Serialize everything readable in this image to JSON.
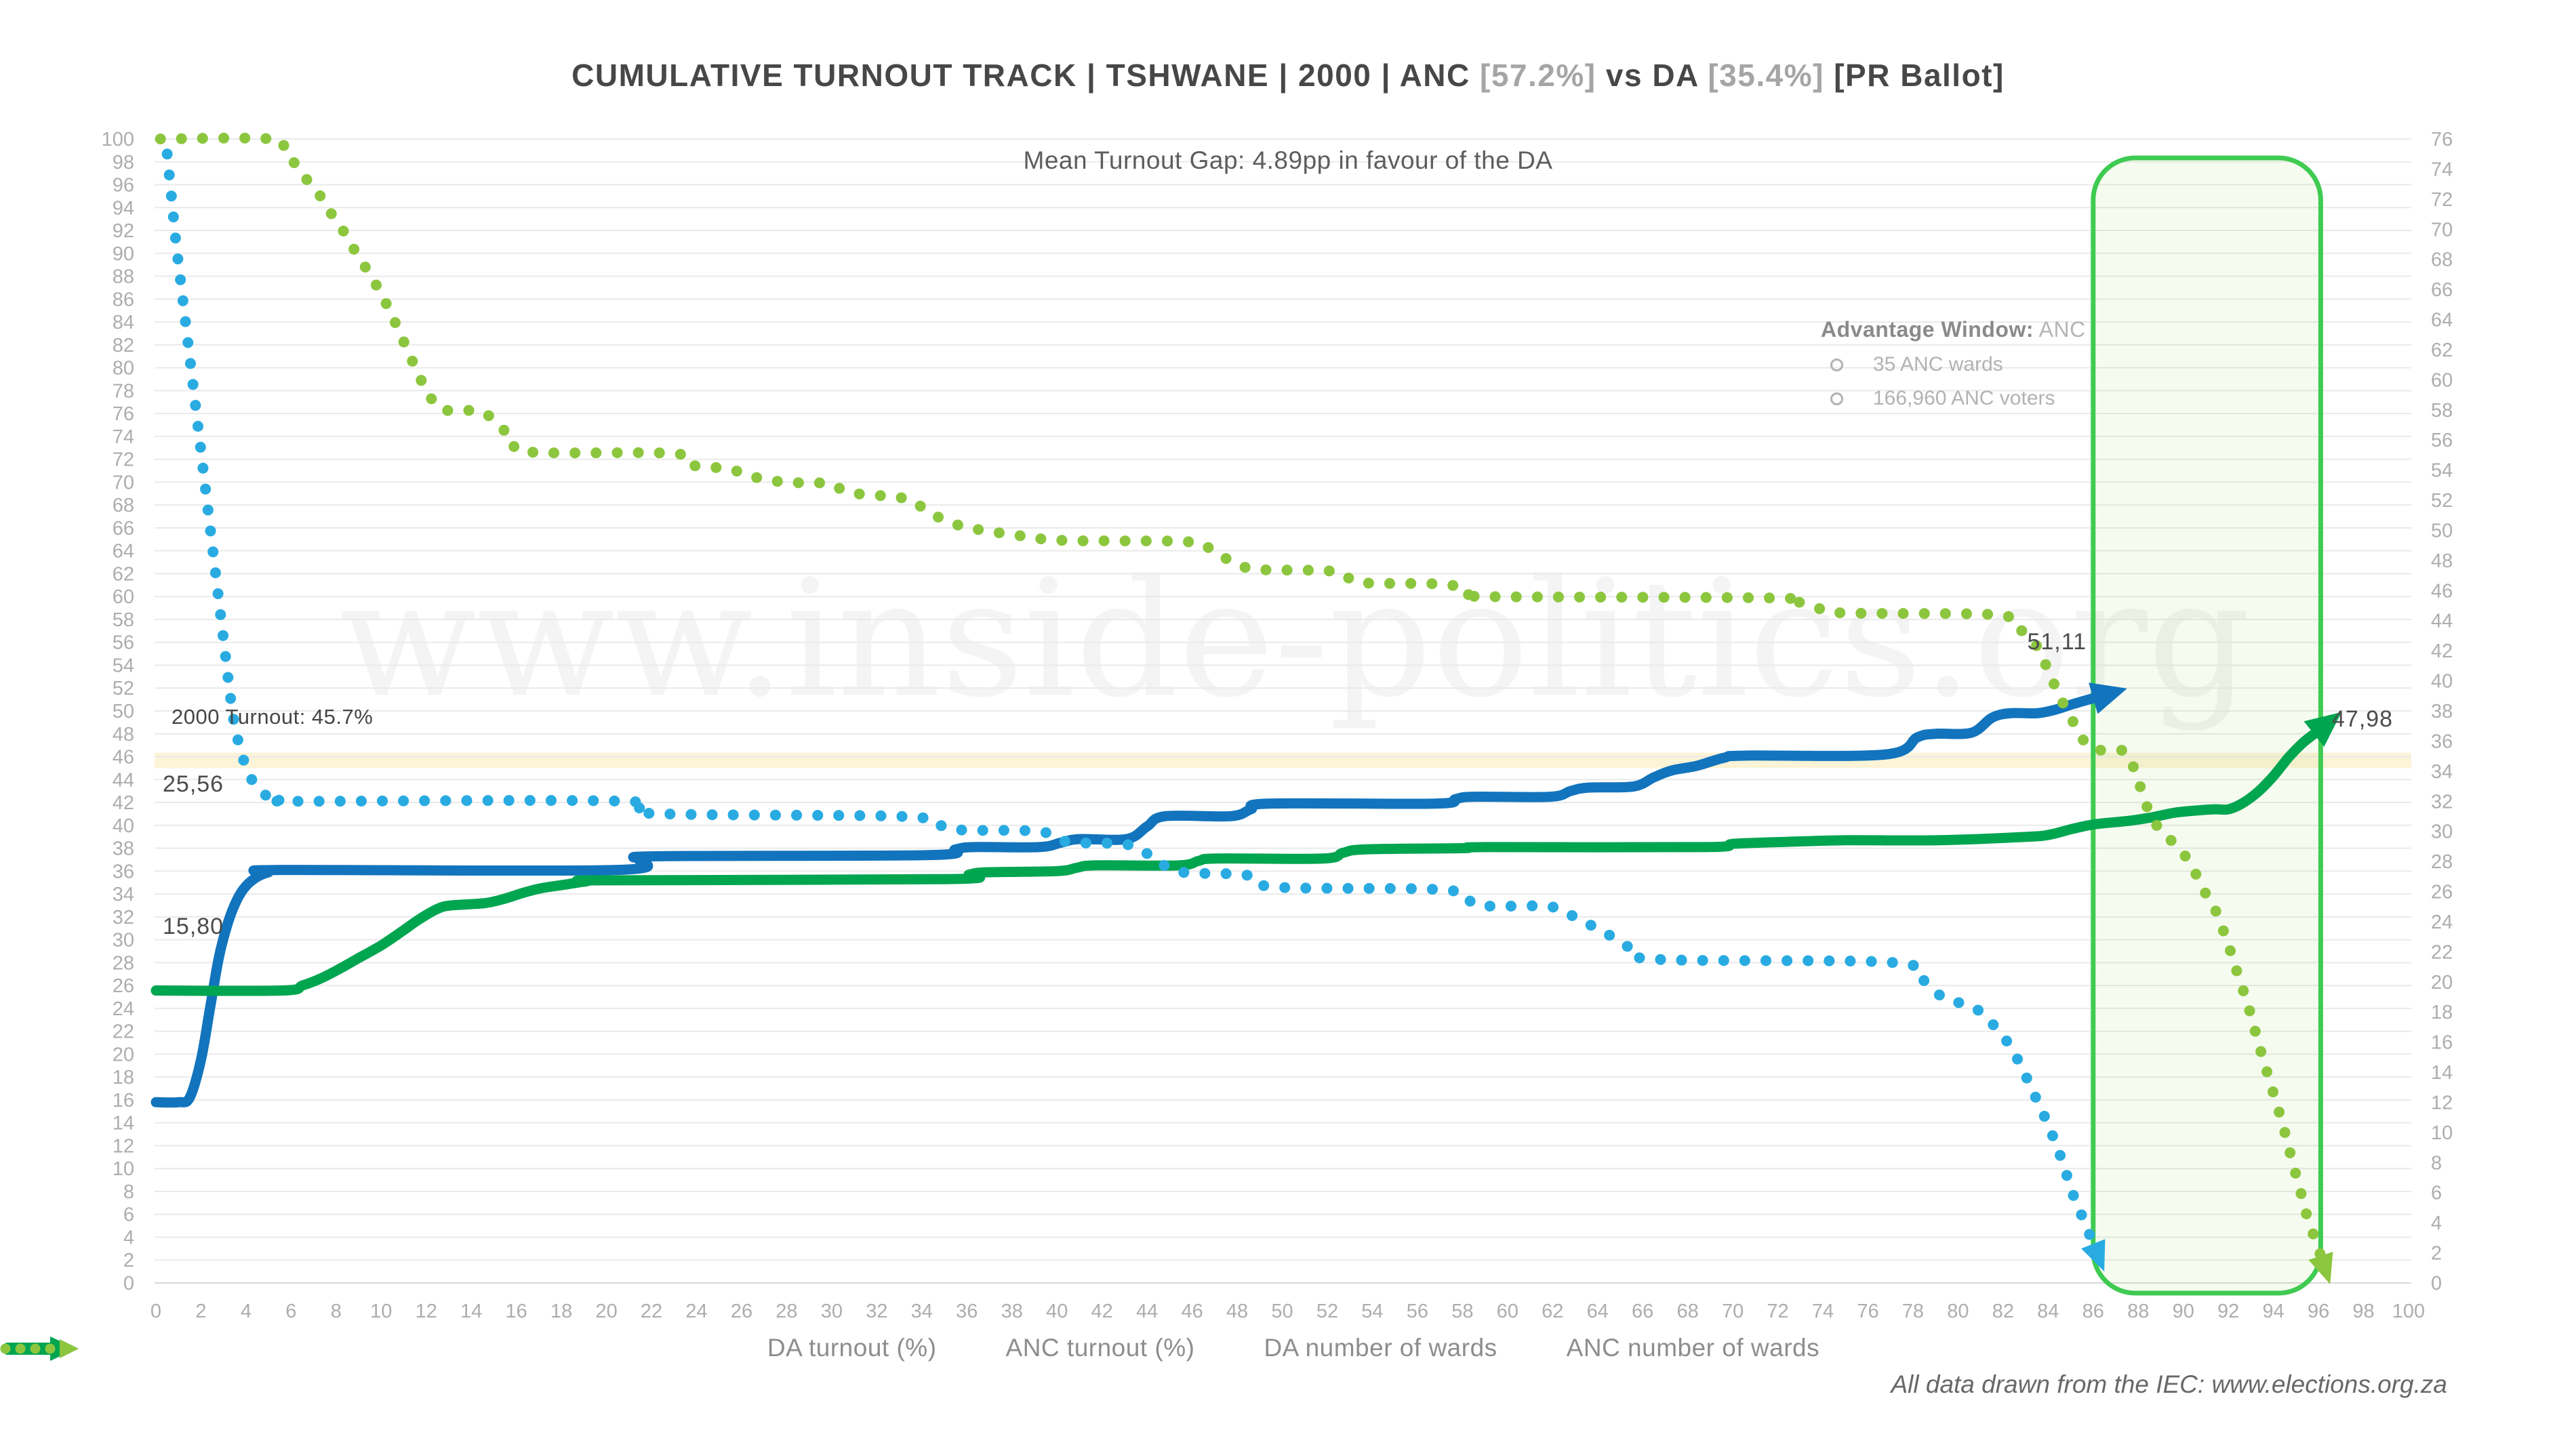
{
  "title": {
    "seg1": "CUMULATIVE TURNOUT TRACK | TSHWANE | 2000 | ANC ",
    "seg2": "[57.2%]",
    "seg3": " vs DA ",
    "seg4": "[35.4%]",
    "seg5": " [PR Ballot]"
  },
  "subtitle": "Mean Turnout Gap: 4.89pp in favour of the DA",
  "watermark": "www.inside-politics.org",
  "footer": "All data drawn from the IEC: www.elections.org.za",
  "annotations": {
    "turnout_band": {
      "label": "2000 Turnout: 45.7%",
      "value": 45.7,
      "band_from": 45.0,
      "band_to": 46.35,
      "color": "#fdf4d7"
    },
    "advantage": {
      "title_label": "Advantage Window:",
      "title_value": " ANC",
      "bullets": [
        "35 ANC wards",
        "166,960 ANC voters"
      ],
      "x_start": 86,
      "x_end": 96.1,
      "stroke": "#3fcb52",
      "fill": "rgba(141,198,63,0.08)"
    },
    "labels": {
      "da_start": "15,80",
      "anc_start": "25,56",
      "da_end": "51,11",
      "anc_end": "47,98"
    }
  },
  "legend": [
    {
      "label": "DA turnout (%)",
      "color": "#1274bd",
      "style": "solid"
    },
    {
      "label": "ANC turnout (%)",
      "color": "#00a550",
      "style": "solid"
    },
    {
      "label": "DA number of wards",
      "color": "#29abe2",
      "style": "dotted"
    },
    {
      "label": "ANC number of wards",
      "color": "#8cc63e",
      "style": "dotted"
    }
  ],
  "colors": {
    "grid": "#eaeaea",
    "grid_zero": "#d8d8d8",
    "tick": "#adadad",
    "da_solid": "#1274bd",
    "anc_solid": "#00a550",
    "da_dotted": "#29abe2",
    "anc_dotted": "#8cc63e",
    "watermark": "rgba(0,0,0,0.045)"
  },
  "chart_data": {
    "type": "line",
    "title": "CUMULATIVE TURNOUT TRACK | TSHWANE | 2000 | ANC [57.2%] vs DA [35.4%] [PR Ballot]",
    "subtitle": "Mean Turnout Gap: 4.89pp in favour of the DA",
    "grid": "horizontal-only",
    "legend_position": "bottom-center",
    "x_axis": {
      "min": 0,
      "max": 100,
      "tick_step": 2
    },
    "y_axis_left": {
      "min": 0,
      "max": 100,
      "tick_step": 2,
      "unit": "turnout %"
    },
    "y_axis_right": {
      "min": 0,
      "max": 76,
      "tick_step": 2,
      "unit": "number of wards"
    },
    "series": [
      {
        "name": "DA turnout (%)",
        "axis": "left",
        "style": "solid",
        "color": "#1274bd",
        "start_label": "15,80",
        "end_label": "51,11",
        "points": [
          [
            0,
            15.8
          ],
          [
            1,
            15.8
          ],
          [
            1.5,
            16.2
          ],
          [
            2,
            19.5
          ],
          [
            2.4,
            24
          ],
          [
            2.8,
            28.5
          ],
          [
            3.2,
            31.5
          ],
          [
            3.6,
            33.5
          ],
          [
            4,
            34.7
          ],
          [
            4.5,
            35.5
          ],
          [
            5,
            35.9
          ],
          [
            5.6,
            36.1
          ],
          [
            20.4,
            36.1
          ],
          [
            21.5,
            37
          ],
          [
            22.3,
            37.3
          ],
          [
            34.3,
            37.4
          ],
          [
            35.5,
            37.9
          ],
          [
            36.3,
            38.1
          ],
          [
            39.2,
            38.1
          ],
          [
            40.2,
            38.5
          ],
          [
            41,
            38.8
          ],
          [
            43.1,
            38.8
          ],
          [
            44,
            39.9
          ],
          [
            44.8,
            40.8
          ],
          [
            47.7,
            40.8
          ],
          [
            48.6,
            41.4
          ],
          [
            49.4,
            41.9
          ],
          [
            56.8,
            41.9
          ],
          [
            57.7,
            42.3
          ],
          [
            58.5,
            42.5
          ],
          [
            61.9,
            42.5
          ],
          [
            62.8,
            43
          ],
          [
            63.6,
            43.3
          ],
          [
            65.6,
            43.4
          ],
          [
            66.5,
            44.2
          ],
          [
            67.3,
            44.8
          ],
          [
            68.4,
            45.2
          ],
          [
            69.6,
            45.9
          ],
          [
            70.6,
            46.1
          ],
          [
            76.8,
            46.2
          ],
          [
            78.2,
            47.7
          ],
          [
            79,
            48
          ],
          [
            80.6,
            48.1
          ],
          [
            81.5,
            49.4
          ],
          [
            82.3,
            49.8
          ],
          [
            83.5,
            49.8
          ],
          [
            84.3,
            50.1
          ],
          [
            85.1,
            50.6
          ],
          [
            86,
            51.11
          ]
        ]
      },
      {
        "name": "ANC turnout (%)",
        "axis": "left",
        "style": "solid",
        "color": "#00a550",
        "start_label": "25,56",
        "end_label": "47,98",
        "points": [
          [
            0,
            25.56
          ],
          [
            5.6,
            25.56
          ],
          [
            6.5,
            26
          ],
          [
            7.3,
            26.6
          ],
          [
            8.1,
            27.4
          ],
          [
            9,
            28.4
          ],
          [
            10,
            29.5
          ],
          [
            10.9,
            30.7
          ],
          [
            11.7,
            31.8
          ],
          [
            12.5,
            32.7
          ],
          [
            13.1,
            33
          ],
          [
            14.6,
            33.2
          ],
          [
            15.5,
            33.6
          ],
          [
            16.3,
            34.1
          ],
          [
            17.1,
            34.5
          ],
          [
            18.1,
            34.8
          ],
          [
            19.1,
            35.1
          ],
          [
            20.1,
            35.2
          ],
          [
            35.2,
            35.3
          ],
          [
            36.1,
            35.7
          ],
          [
            36.9,
            35.9
          ],
          [
            40,
            36
          ],
          [
            40.9,
            36.3
          ],
          [
            41.7,
            36.5
          ],
          [
            45.4,
            36.5
          ],
          [
            46.3,
            36.9
          ],
          [
            47.1,
            37.1
          ],
          [
            51.8,
            37.1
          ],
          [
            52.7,
            37.6
          ],
          [
            53.7,
            37.9
          ],
          [
            58,
            38
          ],
          [
            59.1,
            38.1
          ],
          [
            68.8,
            38.1
          ],
          [
            70.1,
            38.4
          ],
          [
            73.1,
            38.6
          ],
          [
            75.1,
            38.7
          ],
          [
            79.1,
            38.7
          ],
          [
            83.1,
            39
          ],
          [
            84.1,
            39.2
          ],
          [
            85.1,
            39.7
          ],
          [
            86.1,
            40.1
          ],
          [
            87.6,
            40.4
          ],
          [
            88.6,
            40.7
          ],
          [
            89.6,
            41.1
          ],
          [
            90.6,
            41.3
          ],
          [
            91.4,
            41.4
          ],
          [
            92,
            41.4
          ],
          [
            92.6,
            41.9
          ],
          [
            93.3,
            42.9
          ],
          [
            94,
            44.3
          ],
          [
            94.7,
            46
          ],
          [
            95.3,
            47.2
          ],
          [
            95.8,
            47.98
          ]
        ]
      },
      {
        "name": "DA number of wards",
        "axis": "right",
        "style": "dotted",
        "color": "#29abe2",
        "points": [
          [
            0.5,
            75
          ],
          [
            0.7,
            72
          ],
          [
            0.9,
            69
          ],
          [
            1.1,
            66.5
          ],
          [
            1.3,
            64
          ],
          [
            1.5,
            61.5
          ],
          [
            1.7,
            59
          ],
          [
            1.9,
            56.5
          ],
          [
            2.1,
            54
          ],
          [
            2.3,
            51.5
          ],
          [
            2.5,
            49
          ],
          [
            2.7,
            46.5
          ],
          [
            2.9,
            44
          ],
          [
            3.1,
            41.5
          ],
          [
            3.3,
            39
          ],
          [
            3.5,
            37
          ],
          [
            3.8,
            35.2
          ],
          [
            4.1,
            33.9
          ],
          [
            4.5,
            32.9
          ],
          [
            5,
            32.3
          ],
          [
            5.6,
            32.1
          ],
          [
            6.2,
            32
          ],
          [
            20.8,
            32
          ],
          [
            21.9,
            31.2
          ],
          [
            33,
            31
          ],
          [
            34.6,
            30.5
          ],
          [
            35.7,
            30.1
          ],
          [
            39.2,
            30
          ],
          [
            40.5,
            29.3
          ],
          [
            43.2,
            29.1
          ],
          [
            44.4,
            28.1
          ],
          [
            45.5,
            27.3
          ],
          [
            48.4,
            27.1
          ],
          [
            49.7,
            26.3
          ],
          [
            57.3,
            26.1
          ],
          [
            58.7,
            25.1
          ],
          [
            61.9,
            25
          ],
          [
            63.1,
            24.2
          ],
          [
            64.3,
            23.3
          ],
          [
            65.4,
            22.3
          ],
          [
            66.6,
            21.5
          ],
          [
            77,
            21.3
          ],
          [
            78.3,
            20.3
          ],
          [
            79.4,
            18.9
          ],
          [
            80.6,
            18.4
          ],
          [
            81.4,
            17.4
          ],
          [
            82.1,
            16.2
          ],
          [
            82.7,
            14.7
          ],
          [
            83.3,
            12.8
          ],
          [
            84,
            10.5
          ],
          [
            84.6,
            8.2
          ],
          [
            85.1,
            5.9
          ],
          [
            85.6,
            4.1
          ],
          [
            86,
            2.6
          ]
        ]
      },
      {
        "name": "ANC number of wards",
        "axis": "right",
        "style": "dotted",
        "color": "#8cc63e",
        "points": [
          [
            0.2,
            76
          ],
          [
            5.1,
            76
          ],
          [
            5.7,
            75.2
          ],
          [
            6.2,
            74.3
          ],
          [
            6.7,
            73.3
          ],
          [
            7.3,
            72.2
          ],
          [
            7.8,
            71
          ],
          [
            8.4,
            69.7
          ],
          [
            8.9,
            68.4
          ],
          [
            9.5,
            67
          ],
          [
            10,
            65.7
          ],
          [
            10.5,
            64.2
          ],
          [
            11.1,
            62.2
          ],
          [
            11.7,
            60.2
          ],
          [
            12.2,
            58.8
          ],
          [
            12.8,
            58
          ],
          [
            14.4,
            57.9
          ],
          [
            15.2,
            57
          ],
          [
            15.9,
            56
          ],
          [
            16.6,
            55.2
          ],
          [
            23,
            55.1
          ],
          [
            23.9,
            54.3
          ],
          [
            25.4,
            54.1
          ],
          [
            26.4,
            53.6
          ],
          [
            27.9,
            53.2
          ],
          [
            29.9,
            53.1
          ],
          [
            30.8,
            52.5
          ],
          [
            33.3,
            52.1
          ],
          [
            34.3,
            51.2
          ],
          [
            35.5,
            50.4
          ],
          [
            36.7,
            50
          ],
          [
            38.1,
            49.7
          ],
          [
            39.5,
            49.4
          ],
          [
            41.1,
            49.3
          ],
          [
            42.8,
            49.3
          ],
          [
            46.1,
            49.2
          ],
          [
            47,
            48.5
          ],
          [
            48,
            47.8
          ],
          [
            48.9,
            47.4
          ],
          [
            52.1,
            47.3
          ],
          [
            53,
            46.8
          ],
          [
            53.7,
            46.5
          ],
          [
            57.3,
            46.4
          ],
          [
            58.3,
            45.8
          ],
          [
            59.1,
            45.6
          ],
          [
            71.9,
            45.5
          ],
          [
            73,
            45.2
          ],
          [
            74.1,
            44.7
          ],
          [
            75.2,
            44.5
          ],
          [
            81.6,
            44.4
          ],
          [
            82.4,
            43.8
          ],
          [
            83,
            43.1
          ],
          [
            83.5,
            42.3
          ],
          [
            84,
            40.7
          ],
          [
            84.5,
            39
          ],
          [
            85.1,
            37.3
          ],
          [
            85.7,
            35.8
          ],
          [
            86.3,
            35.4
          ],
          [
            87.4,
            35.3
          ],
          [
            87.9,
            33.8
          ],
          [
            88.4,
            31.6
          ],
          [
            89,
            30
          ],
          [
            89.6,
            29.2
          ],
          [
            90.3,
            27.9
          ],
          [
            90.9,
            26.1
          ],
          [
            91.3,
            25.2
          ],
          [
            91.9,
            22.9
          ],
          [
            92.4,
            20.6
          ],
          [
            92.9,
            18.3
          ],
          [
            93.4,
            15.6
          ],
          [
            93.9,
            13.1
          ],
          [
            94.4,
            10.6
          ],
          [
            94.8,
            8.3
          ],
          [
            95.2,
            6.1
          ],
          [
            95.5,
            4.4
          ],
          [
            95.9,
            2.7
          ],
          [
            96.1,
            1.8
          ]
        ]
      }
    ]
  }
}
